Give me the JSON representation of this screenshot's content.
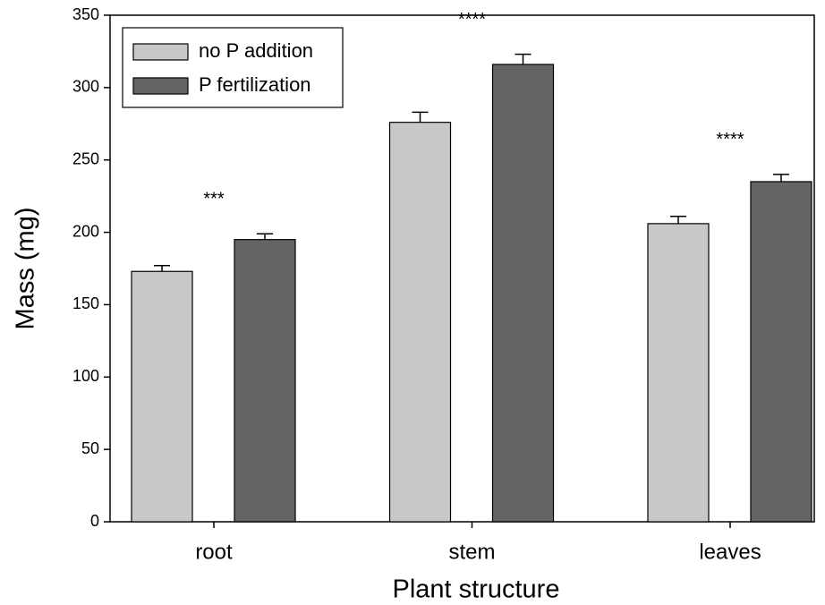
{
  "chart_data": {
    "type": "bar",
    "xlabel": "Plant structure",
    "ylabel": "Mass (mg)",
    "categories": [
      "root",
      "stem",
      "leaves"
    ],
    "series": [
      {
        "name": "no P addition",
        "color": "#c8c8c8",
        "values": [
          173,
          276,
          206
        ],
        "errors": [
          4,
          7,
          5
        ]
      },
      {
        "name": "P fertilization",
        "color": "#646464",
        "values": [
          195,
          316,
          235
        ],
        "errors": [
          4,
          7,
          5
        ]
      }
    ],
    "annotations": [
      "***",
      "****",
      "****"
    ],
    "ylim": [
      0,
      350
    ],
    "yticks": [
      0,
      50,
      100,
      150,
      200,
      250,
      300,
      350
    ],
    "legend": "upper left"
  }
}
